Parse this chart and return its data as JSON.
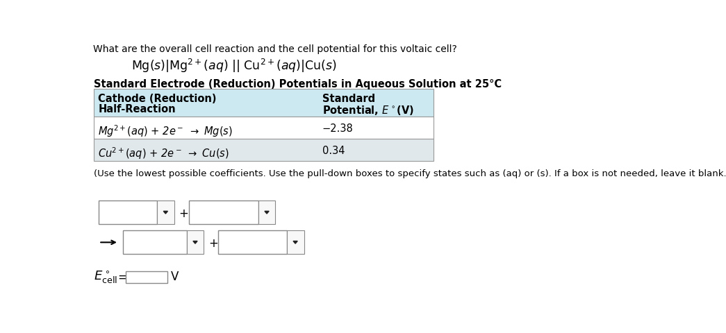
{
  "title_question": "What are the overall cell reaction and the cell potential for this voltaic cell?",
  "table_title": "Standard Electrode (Reduction) Potentials in Aqueous Solution at 25°C",
  "col1_header1": "Cathode (Reduction)",
  "col1_header2": "Half-Reaction",
  "col2_header1": "Standard",
  "col2_header2": "Potential, $E^\\circ$(V)",
  "row1_value": "−2.38",
  "row2_value": "0.34",
  "instruction": "(Use the lowest possible coefficients. Use the pull-down boxes to specify states such as (aq) or (s). If a box is not needed, leave it blank.)",
  "bg_color": "#ffffff",
  "table_header_bg": "#cce8f0",
  "table_row1_bg": "#ffffff",
  "table_row2_bg": "#e0e8ec",
  "table_border_color": "#999999",
  "text_color": "#000000",
  "font_size_question": 10.0,
  "font_size_cell": 12.5,
  "font_size_table_title": 10.5,
  "font_size_table_body": 10.5,
  "font_size_instruction": 9.5,
  "font_size_ecell": 12
}
